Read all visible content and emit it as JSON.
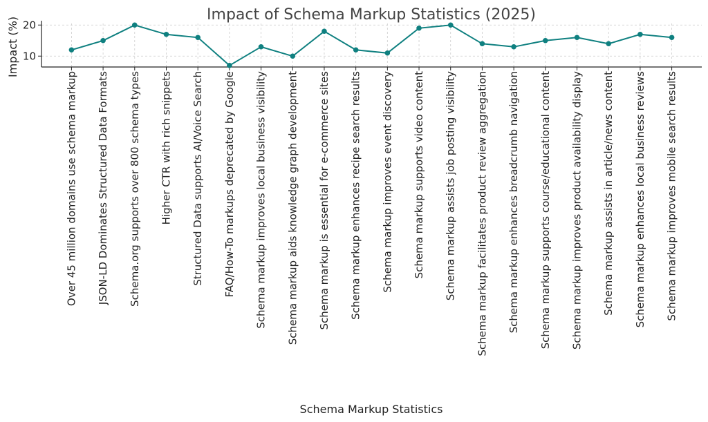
{
  "chart_data": {
    "type": "line",
    "title": "Impact of Schema Markup Statistics (2025)",
    "xlabel": "Schema Markup Statistics",
    "ylabel": "Impact (%)",
    "yticks": [
      10,
      20
    ],
    "ylim": [
      6.5,
      20.5
    ],
    "grid": true,
    "color": "#0f8080",
    "categories": [
      "Over 45 million domains use schema markup",
      "JSON-LD Dominates Structured Data Formats",
      "Schema.org supports over 800 schema types",
      "Higher CTR with rich snippets",
      "Structured Data supports AI/Voice Search",
      "FAQ/How-To markups deprecated by Google",
      "Schema markup improves local business visibility",
      "Schema markup aids knowledge graph development",
      "Schema markup is essential for e-commerce sites",
      "Schema markup enhances recipe search results",
      "Schema markup improves event discovery",
      "Schema markup supports video content",
      "Schema markup assists job posting visibility",
      "Schema markup facilitates product review aggregation",
      "Schema markup enhances breadcrumb navigation",
      "Schema markup supports course/educational content",
      "Schema markup improves product availability display",
      "Schema markup assists in article/news content",
      "Schema markup enhances local business reviews",
      "Schema markup improves mobile search results"
    ],
    "values": [
      12,
      15,
      20,
      17,
      16,
      7,
      13,
      10,
      18,
      12,
      11,
      19,
      20,
      14,
      13,
      15,
      16,
      14,
      17,
      16
    ]
  }
}
